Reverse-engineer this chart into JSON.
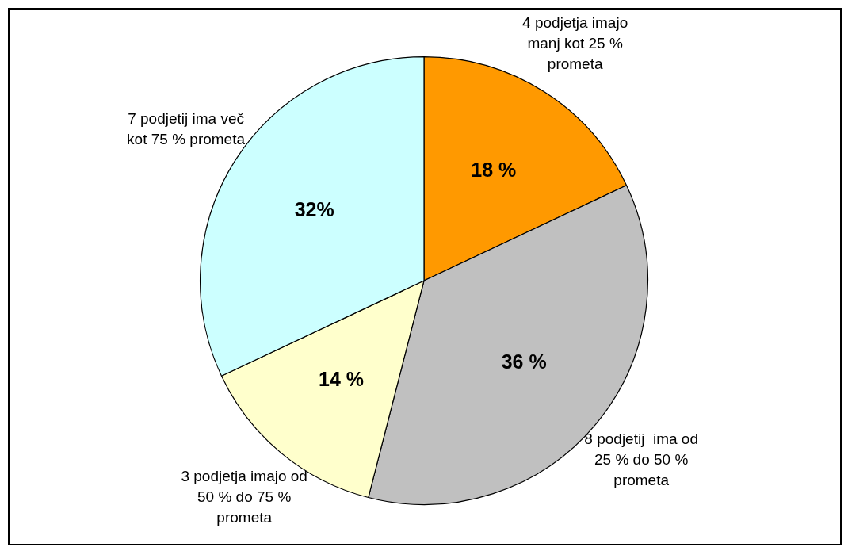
{
  "chart_data": {
    "type": "pie",
    "categories": [
      "4 podjetja imajo manj kot 25 % prometa",
      "8 podjetij  ima od 25 % do 50 % prometa",
      "3 podjetja imajo od 50 % do 75 % prometa",
      "7 podjetij ima več kot 75 % prometa"
    ],
    "values": [
      18,
      36,
      14,
      32
    ],
    "colors": [
      "#ff9900",
      "#c0c0c0",
      "#ffffcc",
      "#ccffff"
    ],
    "value_labels": [
      "18 %",
      "36 %",
      "14 %",
      "32%"
    ],
    "legend": false
  }
}
